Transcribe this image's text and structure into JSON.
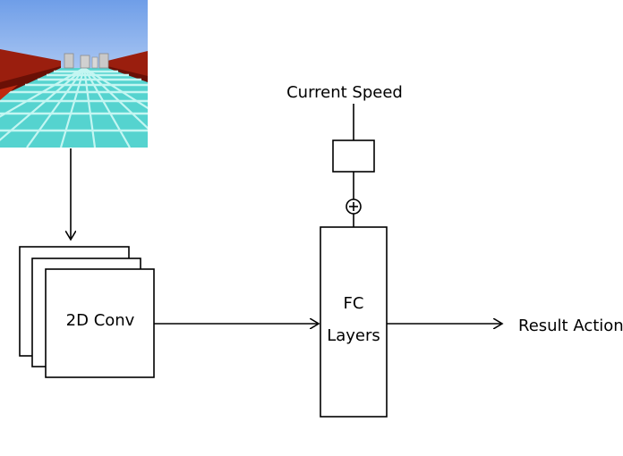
{
  "diagram": {
    "input_image": "minecraft-road-scene",
    "conv_label": "2D Conv",
    "speed_label": "Current Speed",
    "add_symbol": "⊕",
    "fc_label_line1": "FC",
    "fc_label_line2": "Layers",
    "output_label": "Result Action"
  },
  "colors": {
    "sky": "#7ea8ec",
    "floor": "#55d4d0",
    "floor_grid": "#b6f3ef",
    "wall": "#a02010",
    "wall_dark": "#5e0e06",
    "stroke": "#000000"
  }
}
